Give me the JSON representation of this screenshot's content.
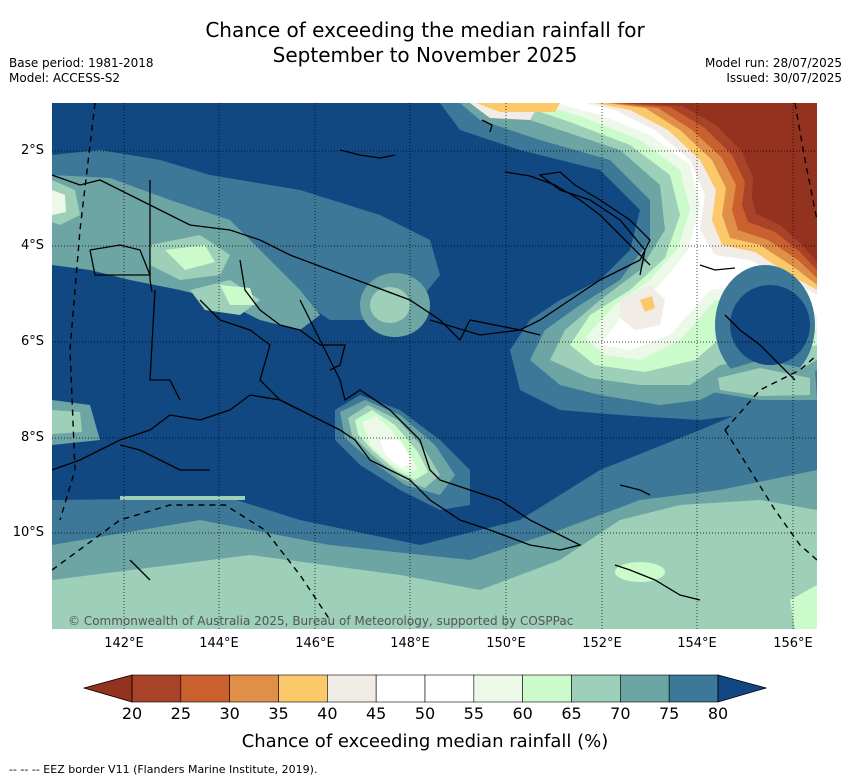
{
  "title_line1": "Chance of exceeding the median rainfall for",
  "title_line2": "September to November 2025",
  "base_period": "Base period: 1981-2018",
  "model": "Model: ACCESS-S2",
  "model_run": "Model run: 28/07/2025",
  "issued": "Issued: 30/07/2025",
  "lat_labels": [
    "2°S",
    "4°S",
    "6°S",
    "8°S",
    "10°S"
  ],
  "lon_labels": [
    "142°E",
    "144°E",
    "146°E",
    "148°E",
    "150°E",
    "152°E",
    "154°E",
    "156°E"
  ],
  "copyright": "© Commonwealth of Australia 2025, Bureau of Meteorology, supported by COSPPac",
  "colorbar": {
    "ticks": [
      "20",
      "25",
      "30",
      "35",
      "40",
      "45",
      "50",
      "55",
      "60",
      "65",
      "70",
      "75",
      "80"
    ],
    "colors": [
      "#a8432a",
      "#c9602d",
      "#e08f48",
      "#fcc96a",
      "#f1ece6",
      "#ffffff",
      "#ffffff",
      "#ecf8e8",
      "#ccfbcb",
      "#9ecfb8",
      "#6da5a5",
      "#3d7899",
      "#124882"
    ],
    "label": "Chance of exceeding median rainfall (%)"
  },
  "footnote": "--  --  -- EEZ border V11 (Flanders Marine Institute, 2019)."
}
